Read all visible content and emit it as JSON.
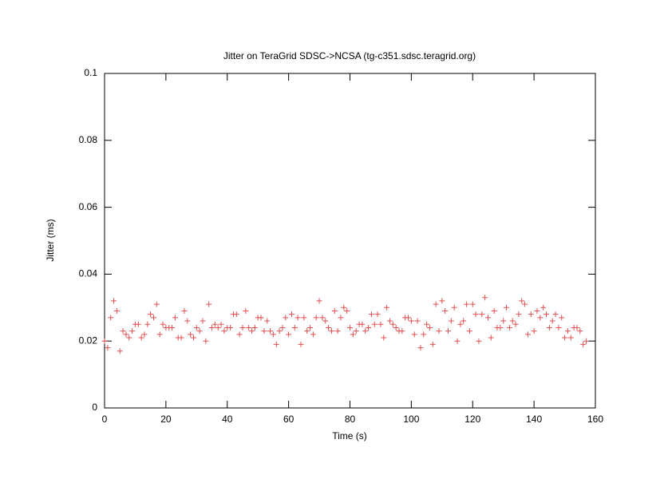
{
  "chart_data": {
    "type": "scatter",
    "title": "Jitter on TeraGrid SDSC->NCSA (tg-c351.sdsc.teragrid.org)",
    "xlabel": "Time (s)",
    "ylabel": "Jitter (ms)",
    "xlim": [
      0,
      160
    ],
    "xticks": [
      0,
      20,
      40,
      60,
      80,
      100,
      120,
      140,
      160
    ],
    "ylim": [
      0,
      0.1
    ],
    "yticks": [
      0,
      0.02,
      0.04,
      0.06,
      0.08,
      0.1
    ],
    "grid": false,
    "series": [
      {
        "color": "#e05050",
        "x": [
          0,
          1,
          2,
          3,
          4,
          5,
          6,
          7,
          8,
          9,
          10,
          11,
          12,
          13,
          14,
          15,
          16,
          17,
          18,
          19,
          20,
          21,
          22,
          23,
          24,
          25,
          26,
          27,
          28,
          29,
          30,
          31,
          32,
          33,
          34,
          35,
          36,
          37,
          38,
          39,
          40,
          41,
          42,
          43,
          44,
          45,
          46,
          47,
          48,
          49,
          50,
          51,
          52,
          53,
          54,
          55,
          56,
          57,
          58,
          59,
          60,
          61,
          62,
          63,
          64,
          65,
          66,
          67,
          68,
          69,
          70,
          71,
          72,
          73,
          74,
          75,
          76,
          77,
          78,
          79,
          80,
          81,
          82,
          83,
          84,
          85,
          86,
          87,
          88,
          89,
          90,
          91,
          92,
          93,
          94,
          95,
          96,
          97,
          98,
          99,
          100,
          101,
          102,
          103,
          104,
          105,
          106,
          107,
          108,
          109,
          110,
          111,
          112,
          113,
          114,
          115,
          116,
          117,
          118,
          119,
          120,
          121,
          122,
          123,
          124,
          125,
          126,
          127,
          128,
          129,
          130,
          131,
          132,
          133,
          134,
          135,
          136,
          137,
          138,
          139,
          140,
          141,
          142,
          143,
          144,
          145,
          146,
          147,
          148,
          149,
          150,
          151,
          152,
          153,
          154,
          155,
          156,
          157
        ],
        "values": [
          0.02,
          0.018,
          0.027,
          0.032,
          0.029,
          0.017,
          0.023,
          0.022,
          0.021,
          0.023,
          0.025,
          0.025,
          0.021,
          0.022,
          0.025,
          0.028,
          0.027,
          0.031,
          0.022,
          0.025,
          0.024,
          0.024,
          0.024,
          0.027,
          0.021,
          0.021,
          0.029,
          0.026,
          0.022,
          0.021,
          0.024,
          0.023,
          0.026,
          0.02,
          0.031,
          0.024,
          0.025,
          0.024,
          0.025,
          0.023,
          0.024,
          0.024,
          0.028,
          0.028,
          0.022,
          0.024,
          0.029,
          0.024,
          0.023,
          0.024,
          0.027,
          0.027,
          0.023,
          0.026,
          0.023,
          0.022,
          0.019,
          0.023,
          0.024,
          0.027,
          0.022,
          0.028,
          0.024,
          0.027,
          0.019,
          0.027,
          0.023,
          0.024,
          0.022,
          0.027,
          0.032,
          0.027,
          0.026,
          0.024,
          0.023,
          0.029,
          0.023,
          0.027,
          0.03,
          0.029,
          0.024,
          0.022,
          0.023,
          0.025,
          0.025,
          0.023,
          0.024,
          0.028,
          0.025,
          0.028,
          0.025,
          0.021,
          0.03,
          0.026,
          0.025,
          0.024,
          0.023,
          0.023,
          0.027,
          0.027,
          0.026,
          0.022,
          0.026,
          0.018,
          0.022,
          0.025,
          0.024,
          0.019,
          0.031,
          0.023,
          0.032,
          0.029,
          0.023,
          0.026,
          0.03,
          0.02,
          0.025,
          0.026,
          0.031,
          0.023,
          0.031,
          0.028,
          0.02,
          0.028,
          0.033,
          0.027,
          0.021,
          0.029,
          0.024,
          0.024,
          0.026,
          0.03,
          0.024,
          0.026,
          0.025,
          0.028,
          0.032,
          0.031,
          0.022,
          0.028,
          0.023,
          0.029,
          0.027,
          0.03,
          0.028,
          0.024,
          0.026,
          0.028,
          0.024,
          0.027,
          0.021,
          0.023,
          0.021,
          0.024,
          0.024,
          0.023,
          0.019,
          0.02
        ]
      }
    ]
  }
}
